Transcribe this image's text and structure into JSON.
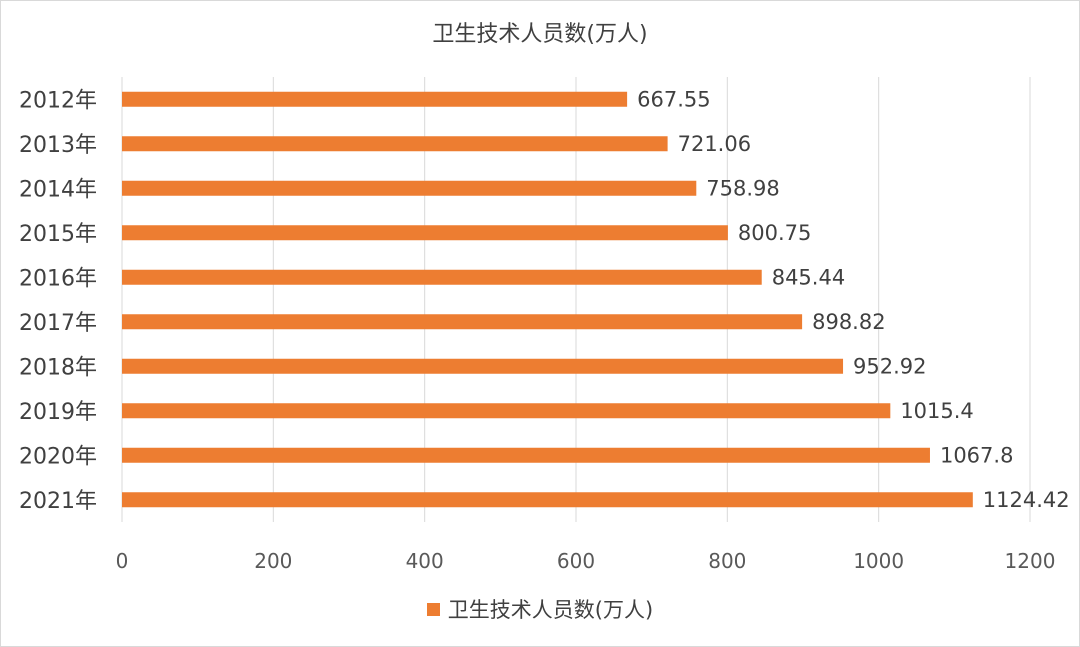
{
  "chart_data": {
    "type": "bar",
    "orientation": "horizontal",
    "title": "卫生技术人员数(万人)",
    "categories": [
      "2012年",
      "2013年",
      "2014年",
      "2015年",
      "2016年",
      "2017年",
      "2018年",
      "2019年",
      "2020年",
      "2021年"
    ],
    "series": [
      {
        "name": "卫生技术人员数(万人)",
        "values": [
          667.55,
          721.06,
          758.98,
          800.75,
          845.44,
          898.82,
          952.92,
          1015.4,
          1067.8,
          1124.42
        ],
        "labels": [
          "667.55",
          "721.06",
          "758.98",
          "800.75",
          "845.44",
          "898.82",
          "952.92",
          "1015.4",
          "1067.8",
          "1124.42"
        ]
      }
    ],
    "xlim": [
      0,
      1200
    ],
    "xticks": [
      "0",
      "200",
      "400",
      "600",
      "800",
      "1000",
      "1200"
    ],
    "grid": true,
    "legend_position": "bottom",
    "bar_color": "#ed7d31",
    "grid_color": "#d9d9d9",
    "text_color": "#404040"
  }
}
